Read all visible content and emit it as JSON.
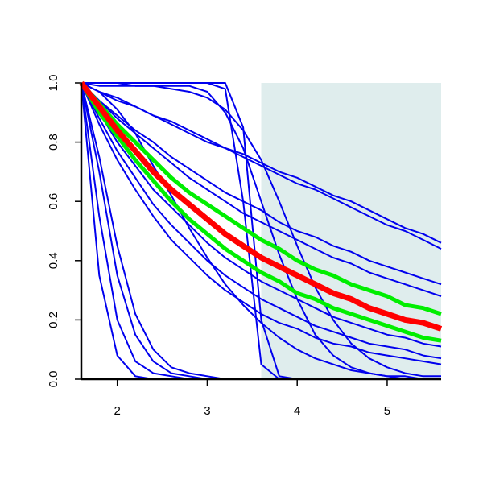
{
  "chart_data": {
    "type": "line",
    "x": [
      1.6,
      1.8,
      2.0,
      2.2,
      2.4,
      2.6,
      2.8,
      3.0,
      3.2,
      3.4,
      3.6,
      3.8,
      4.0,
      4.2,
      4.4,
      4.6,
      4.8,
      5.0,
      5.2,
      5.4,
      5.6
    ],
    "xlim": [
      1.6,
      5.6
    ],
    "ylim": [
      0,
      1
    ],
    "xticks": [
      2,
      3,
      4,
      5
    ],
    "yticks": [
      {
        "value": 0,
        "label": "0.0"
      },
      0.2,
      0.4,
      0.6,
      0.8,
      {
        "value": 1,
        "label": "1.0"
      }
    ],
    "shaded_x": [
      3.6,
      5.6
    ],
    "shade_color": "#dfeded",
    "series": [
      {
        "color": "#0000ee",
        "values": [
          1,
          0.35,
          0.08,
          0.01,
          0,
          0,
          0,
          0,
          0,
          0,
          0,
          0,
          0,
          0,
          0,
          0,
          0,
          0,
          0,
          0,
          0
        ]
      },
      {
        "color": "#0000ee",
        "values": [
          1,
          0.55,
          0.2,
          0.06,
          0.02,
          0.01,
          0,
          0,
          0,
          0,
          0,
          0,
          0,
          0,
          0,
          0,
          0,
          0,
          0,
          0,
          0
        ]
      },
      {
        "color": "#0000ee",
        "values": [
          1,
          0.7,
          0.35,
          0.15,
          0.06,
          0.02,
          0.01,
          0,
          0,
          0,
          0,
          0,
          0,
          0,
          0,
          0,
          0,
          0,
          0,
          0,
          0
        ]
      },
      {
        "color": "#0000ee",
        "values": [
          1,
          0.75,
          0.45,
          0.22,
          0.1,
          0.04,
          0.02,
          0.01,
          0,
          0,
          0,
          0,
          0,
          0,
          0,
          0,
          0,
          0,
          0,
          0,
          0
        ]
      },
      {
        "color": "#0000ee",
        "values": [
          1,
          1,
          1,
          1,
          1,
          1,
          1,
          1,
          0.98,
          0.6,
          0.05,
          0,
          0,
          0,
          0,
          0,
          0,
          0,
          0,
          0,
          0
        ]
      },
      {
        "color": "#0000ee",
        "values": [
          1,
          1,
          1,
          1,
          1,
          1,
          1,
          1,
          1,
          0.85,
          0.2,
          0.01,
          0,
          0,
          0,
          0,
          0,
          0,
          0,
          0,
          0
        ]
      },
      {
        "color": "#0000ee",
        "values": [
          1,
          0.99,
          0.99,
          0.99,
          0.99,
          0.99,
          0.99,
          0.97,
          0.9,
          0.78,
          0.6,
          0.42,
          0.27,
          0.15,
          0.08,
          0.04,
          0.02,
          0.01,
          0,
          0,
          0
        ]
      },
      {
        "color": "#0000ee",
        "values": [
          1,
          1,
          1,
          0.99,
          0.99,
          0.98,
          0.97,
          0.95,
          0.91,
          0.84,
          0.74,
          0.6,
          0.45,
          0.31,
          0.2,
          0.12,
          0.07,
          0.04,
          0.02,
          0.01,
          0.01
        ]
      },
      {
        "color": "#0000ee",
        "values": [
          1,
          0.97,
          0.95,
          0.92,
          0.89,
          0.87,
          0.84,
          0.81,
          0.78,
          0.76,
          0.73,
          0.7,
          0.68,
          0.65,
          0.62,
          0.6,
          0.57,
          0.54,
          0.51,
          0.49,
          0.46
        ]
      },
      {
        "color": "#0000ee",
        "values": [
          1,
          0.97,
          0.94,
          0.92,
          0.89,
          0.86,
          0.83,
          0.8,
          0.78,
          0.75,
          0.72,
          0.69,
          0.66,
          0.64,
          0.61,
          0.58,
          0.55,
          0.52,
          0.5,
          0.47,
          0.44
        ]
      },
      {
        "color": "#0000ee",
        "values": [
          1,
          0.94,
          0.89,
          0.84,
          0.8,
          0.75,
          0.71,
          0.67,
          0.63,
          0.6,
          0.57,
          0.53,
          0.5,
          0.48,
          0.45,
          0.43,
          0.4,
          0.38,
          0.36,
          0.34,
          0.32
        ]
      },
      {
        "color": "#0000ee",
        "values": [
          1,
          0.94,
          0.88,
          0.83,
          0.78,
          0.73,
          0.68,
          0.64,
          0.6,
          0.56,
          0.53,
          0.5,
          0.47,
          0.44,
          0.41,
          0.39,
          0.36,
          0.34,
          0.32,
          0.3,
          0.28
        ]
      },
      {
        "color": "#0000ee",
        "values": [
          1,
          0.9,
          0.8,
          0.72,
          0.64,
          0.58,
          0.52,
          0.46,
          0.41,
          0.37,
          0.33,
          0.3,
          0.27,
          0.24,
          0.21,
          0.19,
          0.17,
          0.15,
          0.14,
          0.12,
          0.11
        ]
      },
      {
        "color": "#0000ee",
        "values": [
          1,
          0.88,
          0.77,
          0.68,
          0.59,
          0.52,
          0.46,
          0.4,
          0.35,
          0.31,
          0.27,
          0.24,
          0.21,
          0.18,
          0.16,
          0.14,
          0.12,
          0.11,
          0.1,
          0.08,
          0.07
        ]
      },
      {
        "color": "#0000ee",
        "values": [
          1,
          0.86,
          0.74,
          0.64,
          0.55,
          0.47,
          0.41,
          0.35,
          0.3,
          0.26,
          0.22,
          0.19,
          0.17,
          0.14,
          0.12,
          0.11,
          0.09,
          0.08,
          0.07,
          0.06,
          0.05
        ]
      },
      {
        "color": "#0000ee",
        "values": [
          1,
          0.97,
          0.91,
          0.83,
          0.72,
          0.62,
          0.51,
          0.41,
          0.32,
          0.25,
          0.19,
          0.14,
          0.1,
          0.07,
          0.05,
          0.03,
          0.02,
          0.01,
          0.01,
          0,
          0
        ]
      },
      {
        "color": "#00ee00",
        "width": 5,
        "values": [
          1,
          0.93,
          0.86,
          0.8,
          0.74,
          0.68,
          0.63,
          0.59,
          0.55,
          0.51,
          0.47,
          0.44,
          0.4,
          0.37,
          0.35,
          0.32,
          0.3,
          0.28,
          0.25,
          0.24,
          0.22
        ]
      },
      {
        "color": "#00ee00",
        "width": 5,
        "values": [
          1,
          0.9,
          0.82,
          0.74,
          0.67,
          0.6,
          0.54,
          0.49,
          0.44,
          0.4,
          0.36,
          0.33,
          0.29,
          0.27,
          0.24,
          0.22,
          0.2,
          0.18,
          0.16,
          0.14,
          0.13
        ]
      },
      {
        "color": "#ff0000",
        "width": 7,
        "values": [
          1,
          0.92,
          0.84,
          0.77,
          0.7,
          0.64,
          0.59,
          0.54,
          0.49,
          0.45,
          0.41,
          0.38,
          0.35,
          0.32,
          0.29,
          0.27,
          0.24,
          0.22,
          0.2,
          0.19,
          0.17
        ]
      }
    ]
  }
}
